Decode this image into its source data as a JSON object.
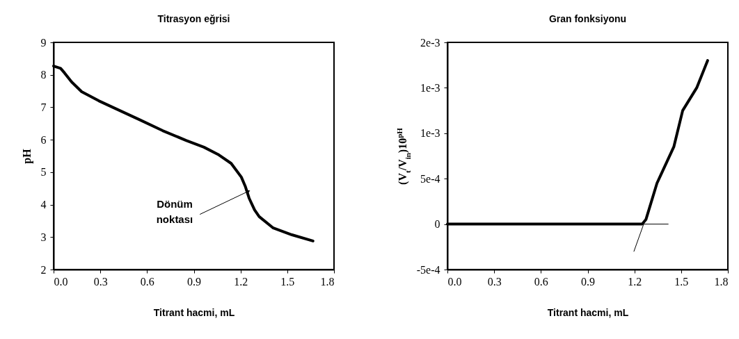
{
  "chart_data": [
    {
      "type": "line",
      "title": "Titrasyon eğrisi",
      "xlabel": "Titrant hacmi, mL",
      "ylabel": "pH",
      "x": [
        0,
        0.045,
        0.07,
        0.116,
        0.18,
        0.29,
        0.415,
        0.55,
        0.7,
        0.85,
        0.965,
        1.055,
        1.14,
        1.205,
        1.23,
        1.255,
        1.29,
        1.32,
        1.41,
        1.53,
        1.665
      ],
      "values": [
        8.27,
        8.2,
        8.06,
        7.78,
        7.48,
        7.2,
        6.92,
        6.62,
        6.28,
        5.98,
        5.77,
        5.55,
        5.27,
        4.85,
        4.57,
        4.2,
        3.84,
        3.63,
        3.28,
        3.07,
        2.88
      ],
      "color": "#000000",
      "xlim": [
        0,
        1.8
      ],
      "ylim": [
        2,
        9
      ],
      "xticks": [
        {
          "value": 0,
          "label": "0.0"
        },
        0.3,
        0.6,
        0.9,
        1.2,
        1.5,
        1.8
      ],
      "yticks": [
        2,
        3,
        4,
        5,
        6,
        7,
        8,
        9
      ],
      "annotations": [
        {
          "text": "Dönüm noktası",
          "x": 1.245,
          "y": 4.4
        }
      ]
    },
    {
      "type": "line",
      "title": "Gran fonksiyonu",
      "xlabel": "Titrant hacmi, mL",
      "ylabel": "(V$_{t}$/V$_{in}$)10$^{pH}$",
      "series": [
        {
          "color": "#000000",
          "x": [
            0,
            0.3,
            0.6,
            0.9,
            1.14,
            1.2,
            1.25,
            1.274,
            1.345,
            1.453,
            1.51,
            1.6,
            1.67
          ],
          "values": [
            0,
            0,
            0,
            0,
            0,
            0,
            0,
            5e-05,
            0.00045,
            0.00085,
            0.00125,
            0.0015,
            0.0018
          ]
        },
        {
          "type": "line",
          "color": "#000000",
          "x": [
            0,
            1.417
          ],
          "values": [
            0,
            0
          ]
        },
        {
          "type": "line",
          "color": "#000000",
          "x": [
            1.197,
            1.27
          ],
          "values": [
            -0.0003,
            5e-05
          ]
        }
      ],
      "xlim": [
        0,
        1.8
      ],
      "ylim": [
        -0.0005,
        0.002
      ],
      "xticks": [
        {
          "value": 0,
          "label": "0.0"
        },
        0.3,
        0.6,
        0.9,
        1.2,
        1.5,
        1.8
      ],
      "yticks": [
        {
          "value": -0.0005,
          "label": "-5e-4"
        },
        0,
        {
          "value": 0.0005,
          "label": "5e-4"
        },
        {
          "value": 0.001,
          "label": "1e-3"
        },
        {
          "value": 0.0015,
          "label": "1e-3"
        },
        {
          "value": 0.002,
          "label": "2e-3"
        }
      ]
    }
  ]
}
